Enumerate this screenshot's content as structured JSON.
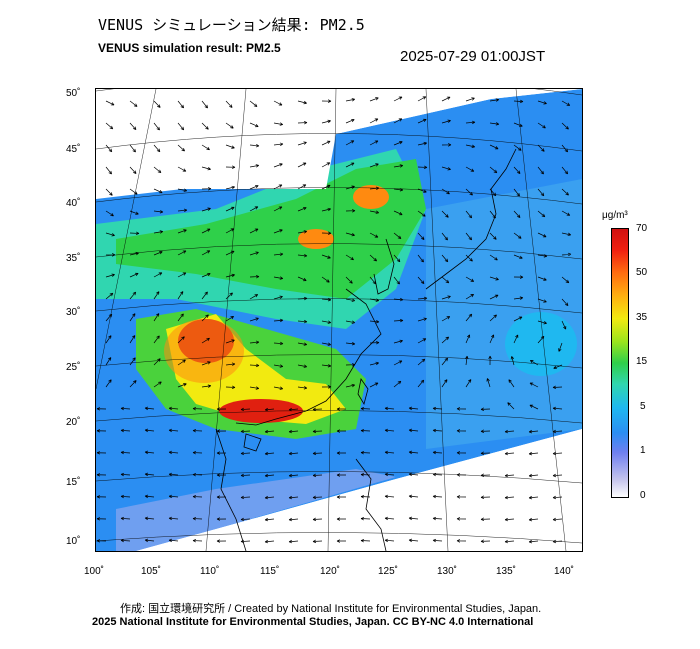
{
  "header": {
    "title_jp": "VENUS シミュレーション結果: PM2.5",
    "title_en": "VENUS simulation result: PM2.5",
    "timestamp": "2025-07-29 01:00JST"
  },
  "axes": {
    "lon_labels": [
      "100˚",
      "105˚",
      "110˚",
      "115˚",
      "120˚",
      "125˚",
      "130˚",
      "135˚",
      "140˚"
    ],
    "lat_labels": [
      "50˚",
      "45˚",
      "40˚",
      "35˚",
      "30˚",
      "25˚",
      "20˚",
      "15˚",
      "10˚"
    ]
  },
  "colorbar": {
    "unit": "μg/m³",
    "ticks": [
      "70",
      "50",
      "35",
      "15",
      "5",
      "1",
      "0"
    ]
  },
  "footer": {
    "credit_line1": "作成: 国立環境研究所 / Created by National Institute for Environmental Studies, Japan.",
    "credit_line2": "2025 National Institute for Environmental Studies, Japan. CC BY-NC 4.0 International"
  },
  "colors": {
    "low": "#c9c8ee",
    "blue": "#2b8ef2",
    "cyan": "#30d6b0",
    "green": "#2fd04a",
    "yellow": "#f2ea10",
    "orange": "#ff6a10",
    "red": "#d01010"
  }
}
